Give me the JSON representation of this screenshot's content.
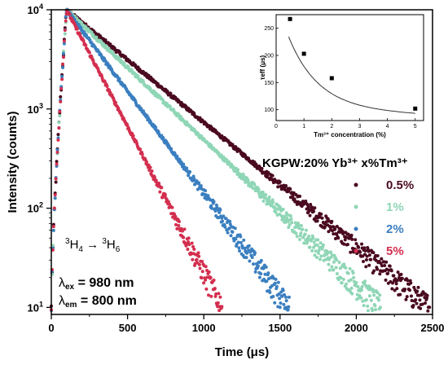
{
  "chart_data": {
    "type": "scatter",
    "xlabel": "Time (μs)",
    "ylabel": "Intensity (counts)",
    "xlim": [
      0,
      2500
    ],
    "ylim": [
      8.5,
      10000
    ],
    "yscale": "log",
    "x_ticks": [
      "0",
      "500",
      "1000",
      "1500",
      "2000",
      "2500"
    ],
    "y_ticks": [
      {
        "value": 10,
        "exp": "1"
      },
      {
        "value": 100,
        "exp": "2"
      },
      {
        "value": 1000,
        "exp": "3"
      },
      {
        "value": 10000,
        "exp": "4"
      }
    ],
    "legend_title": "KGPW:20% Yb³⁺ x%Tm³⁺",
    "legend_position": "right",
    "series": [
      {
        "name": "0.5%",
        "color": "#4a0a20",
        "peak_x": 100,
        "peak_y": 10000,
        "end_x": 2480,
        "end_y": 10
      },
      {
        "name": "1%",
        "color": "#8fd6b6",
        "peak_x": 100,
        "peak_y": 10000,
        "end_x": 2160,
        "end_y": 10
      },
      {
        "name": "2%",
        "color": "#3b7fc0",
        "peak_x": 100,
        "peak_y": 10000,
        "end_x": 1560,
        "end_y": 10
      },
      {
        "name": "5%",
        "color": "#d32f4f",
        "peak_x": 100,
        "peak_y": 10000,
        "end_x": 1120,
        "end_y": 10
      }
    ],
    "annotations": {
      "transition": {
        "from": "3",
        "from_sub": "4",
        "arrow": "→",
        "to": "3",
        "to_sub": "6",
        "letter": "H"
      },
      "excitation": {
        "symbol": "λ",
        "sub": "ex",
        "text": " = 980 nm"
      },
      "emission": {
        "symbol": "λ",
        "sub": "em",
        "text": " = 800 nm"
      }
    },
    "inset": {
      "type": "scatter",
      "xlabel": "Tm³⁺ concentration (%)",
      "ylabel": "τeff (μs)",
      "xlim": [
        0,
        5.3
      ],
      "ylim": [
        80,
        275
      ],
      "x_ticks": [
        0,
        1,
        2,
        3,
        4,
        5
      ],
      "y_ticks": [
        100,
        150,
        200,
        250
      ],
      "points": [
        {
          "x": 0.5,
          "y": 267
        },
        {
          "x": 1,
          "y": 203
        },
        {
          "x": 2,
          "y": 158
        },
        {
          "x": 5,
          "y": 102
        }
      ]
    }
  }
}
